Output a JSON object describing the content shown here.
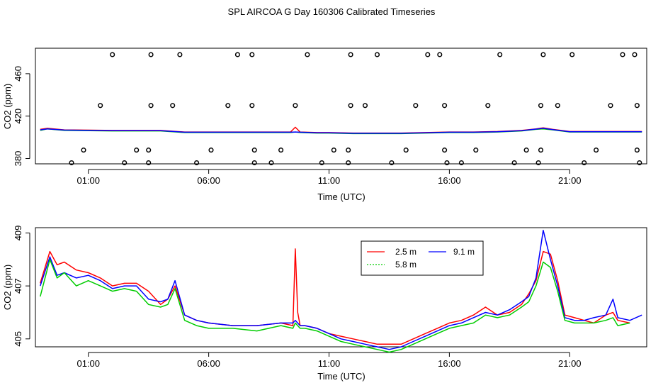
{
  "title": "SPL AIRCOA G  Day 160306  Calibrated Timeseries",
  "chart_data": [
    {
      "type": "scatter",
      "id": "top",
      "xlabel": "Time (UTC)",
      "ylabel": "CO2 (ppm)",
      "xlim": [
        -1.2,
        24.2
      ],
      "ylim": [
        375,
        484
      ],
      "xticks": [
        {
          "v": 1,
          "label": "01:00"
        },
        {
          "v": 6,
          "label": "06:00"
        },
        {
          "v": 11,
          "label": "11:00"
        },
        {
          "v": 16,
          "label": "16:00"
        },
        {
          "v": 21,
          "label": "21:00"
        }
      ],
      "yticks": [
        {
          "v": 380,
          "label": "380"
        },
        {
          "v": 420,
          "label": "420"
        },
        {
          "v": 460,
          "label": "460"
        }
      ],
      "levels": {
        "l1": 478,
        "l2": 430,
        "l3": 388,
        "l4": 376
      },
      "points": [
        [
          0.3,
          "l4"
        ],
        [
          0.8,
          "l3"
        ],
        [
          1.5,
          "l2"
        ],
        [
          2.0,
          "l1"
        ],
        [
          2.5,
          "l4"
        ],
        [
          3.0,
          "l3"
        ],
        [
          3.5,
          "l3"
        ],
        [
          3.5,
          "l4"
        ],
        [
          3.6,
          "l2"
        ],
        [
          3.6,
          "l1"
        ],
        [
          4.5,
          "l2"
        ],
        [
          4.8,
          "l1"
        ],
        [
          5.5,
          "l4"
        ],
        [
          6.1,
          "l3"
        ],
        [
          6.8,
          "l2"
        ],
        [
          7.2,
          "l1"
        ],
        [
          7.8,
          "l1"
        ],
        [
          7.8,
          "l2"
        ],
        [
          7.9,
          "l3"
        ],
        [
          7.9,
          "l4"
        ],
        [
          8.6,
          "l4"
        ],
        [
          9.0,
          "l3"
        ],
        [
          9.6,
          "l2"
        ],
        [
          10.1,
          "l1"
        ],
        [
          10.7,
          "l4"
        ],
        [
          11.2,
          "l3"
        ],
        [
          11.8,
          "l3"
        ],
        [
          11.8,
          "l4"
        ],
        [
          11.9,
          "l2"
        ],
        [
          11.9,
          "l1"
        ],
        [
          12.5,
          "l2"
        ],
        [
          13.0,
          "l1"
        ],
        [
          13.6,
          "l4"
        ],
        [
          14.2,
          "l3"
        ],
        [
          14.6,
          "l2"
        ],
        [
          15.1,
          "l1"
        ],
        [
          15.6,
          "l1"
        ],
        [
          15.8,
          "l2"
        ],
        [
          15.8,
          "l3"
        ],
        [
          15.9,
          "l4"
        ],
        [
          16.5,
          "l4"
        ],
        [
          17.1,
          "l3"
        ],
        [
          17.6,
          "l2"
        ],
        [
          18.1,
          "l1"
        ],
        [
          18.7,
          "l4"
        ],
        [
          19.2,
          "l3"
        ],
        [
          19.7,
          "l4"
        ],
        [
          19.8,
          "l3"
        ],
        [
          19.8,
          "l2"
        ],
        [
          19.9,
          "l1"
        ],
        [
          20.5,
          "l2"
        ],
        [
          21.1,
          "l1"
        ],
        [
          21.6,
          "l4"
        ],
        [
          22.1,
          "l3"
        ],
        [
          22.7,
          "l2"
        ],
        [
          23.2,
          "l1"
        ],
        [
          23.7,
          "l1"
        ],
        [
          23.8,
          "l2"
        ],
        [
          23.8,
          "l3"
        ],
        [
          23.9,
          "l4"
        ]
      ],
      "lines": [
        {
          "name": "2.5 m",
          "color": "#ff0000",
          "x": [
            -1.0,
            -0.7,
            0,
            2,
            4,
            5,
            8,
            9.4,
            9.6,
            9.8,
            10.5,
            11,
            12,
            13,
            14,
            15,
            16,
            17,
            18,
            19,
            19.6,
            19.9,
            20.3,
            21,
            22,
            23,
            24
          ],
          "y": [
            407.5,
            408.5,
            407,
            406.5,
            406.5,
            405,
            405,
            405,
            409.5,
            405,
            404.5,
            404.5,
            404,
            404,
            404,
            404.5,
            405,
            405,
            405.5,
            406.5,
            408,
            409,
            407.5,
            405.5,
            405.5,
            405.5,
            405.5
          ]
        },
        {
          "name": "5.8 m",
          "color": "#00cc00",
          "x": [
            -1.0,
            -0.7,
            0,
            2,
            4,
            5,
            8,
            9.4,
            9.6,
            9.8,
            10.5,
            11,
            12,
            13,
            14,
            15,
            16,
            17,
            18,
            19,
            19.6,
            19.9,
            20.3,
            21,
            22,
            23,
            24
          ],
          "y": [
            406.5,
            408,
            406.5,
            406,
            406,
            404.5,
            404.5,
            404.5,
            405,
            404.5,
            404,
            404,
            403.5,
            403.5,
            403.5,
            404,
            404.5,
            404.5,
            405,
            406,
            407.5,
            408,
            407,
            405,
            405,
            405,
            405
          ]
        },
        {
          "name": "9.1 m",
          "color": "#0000ff",
          "x": [
            -1.0,
            -0.7,
            0,
            2,
            4,
            5,
            8,
            9.4,
            9.6,
            9.8,
            10.5,
            11,
            12,
            13,
            14,
            15,
            16,
            17,
            18,
            19,
            19.6,
            19.9,
            20.3,
            21,
            22,
            23,
            24
          ],
          "y": [
            407,
            408,
            406.8,
            406.3,
            406.3,
            404.8,
            404.8,
            404.8,
            405,
            404.8,
            404.3,
            404.3,
            403.8,
            403.8,
            403.8,
            404.3,
            404.8,
            404.8,
            405.3,
            406.3,
            407.8,
            408.5,
            407.2,
            405.2,
            405.2,
            405.2,
            405.2
          ]
        }
      ]
    },
    {
      "type": "line",
      "id": "bottom",
      "xlabel": "Time (UTC)",
      "ylabel": "CO2 (ppm)",
      "xlim": [
        -1.2,
        24.2
      ],
      "ylim": [
        404.7,
        409.2
      ],
      "xticks": [
        {
          "v": 1,
          "label": "01:00"
        },
        {
          "v": 6,
          "label": "06:00"
        },
        {
          "v": 11,
          "label": "11:00"
        },
        {
          "v": 16,
          "label": "16:00"
        },
        {
          "v": 21,
          "label": "21:00"
        }
      ],
      "yticks": [
        {
          "v": 405,
          "label": "405"
        },
        {
          "v": 407,
          "label": "407"
        },
        {
          "v": 409,
          "label": "409"
        }
      ],
      "legend": {
        "placement": "top-center",
        "entries": [
          {
            "label": "2.5 m",
            "color": "#ff0000",
            "dash": false
          },
          {
            "label": "9.1 m",
            "color": "#0000ff",
            "dash": false
          },
          {
            "label": "5.8 m",
            "color": "#00cc00",
            "dash": true
          }
        ]
      },
      "series": [
        {
          "name": "2.5 m",
          "color": "#ff0000",
          "x": [
            -1.0,
            -0.6,
            -0.3,
            0,
            0.5,
            1,
            1.5,
            2,
            2.5,
            3,
            3.5,
            4,
            4.3,
            4.6,
            5,
            5.5,
            6,
            7,
            8,
            9,
            9.5,
            9.6,
            9.7,
            9.8,
            10,
            10.5,
            11,
            11.5,
            12,
            12.5,
            13,
            13.5,
            14,
            14.5,
            15,
            15.5,
            16,
            16.5,
            17,
            17.5,
            18,
            18.5,
            19,
            19.3,
            19.6,
            19.9,
            20.2,
            20.5,
            20.8,
            21.2,
            21.6,
            22,
            22.5,
            22.8,
            23,
            23.5
          ],
          "y": [
            407.1,
            408.3,
            407.8,
            407.9,
            407.6,
            407.5,
            407.3,
            407.0,
            407.1,
            407.1,
            406.8,
            406.3,
            406.5,
            407.0,
            405.9,
            405.7,
            405.6,
            405.5,
            405.5,
            405.6,
            405.5,
            408.4,
            406.0,
            405.5,
            405.5,
            405.4,
            405.2,
            405.1,
            405.0,
            404.9,
            404.8,
            404.8,
            404.8,
            405.0,
            405.2,
            405.4,
            405.6,
            405.7,
            405.9,
            406.2,
            405.9,
            406.0,
            406.3,
            406.7,
            407.2,
            408.3,
            408.2,
            407.2,
            405.9,
            405.8,
            405.7,
            405.6,
            405.9,
            406.0,
            405.7,
            405.6
          ]
        },
        {
          "name": "9.1 m",
          "color": "#0000ff",
          "x": [
            -1.0,
            -0.6,
            -0.3,
            0,
            0.5,
            1,
            1.5,
            2,
            2.5,
            3,
            3.5,
            4,
            4.3,
            4.6,
            5,
            5.5,
            6,
            7,
            8,
            9,
            9.5,
            9.6,
            9.7,
            9.8,
            10,
            10.5,
            11,
            11.5,
            12,
            12.5,
            13,
            13.5,
            14,
            14.5,
            15,
            15.5,
            16,
            16.5,
            17,
            17.5,
            18,
            18.5,
            19,
            19.3,
            19.6,
            19.9,
            20.2,
            20.5,
            20.8,
            21.2,
            21.6,
            22,
            22.5,
            22.8,
            23,
            23.5,
            24
          ],
          "y": [
            407.0,
            408.1,
            407.4,
            407.5,
            407.3,
            407.4,
            407.2,
            406.9,
            407.0,
            407.0,
            406.5,
            406.4,
            406.5,
            407.2,
            405.9,
            405.7,
            405.6,
            405.5,
            405.5,
            405.6,
            405.6,
            405.7,
            405.6,
            405.5,
            405.5,
            405.4,
            405.2,
            405.0,
            404.9,
            404.8,
            404.7,
            404.6,
            404.7,
            404.9,
            405.1,
            405.3,
            405.5,
            405.6,
            405.8,
            406.0,
            405.9,
            406.1,
            406.4,
            406.6,
            407.3,
            409.1,
            408.0,
            407.0,
            405.8,
            405.7,
            405.7,
            405.8,
            405.9,
            406.5,
            405.8,
            405.7,
            405.9
          ]
        },
        {
          "name": "5.8 m",
          "color": "#00cc00",
          "x": [
            -1.0,
            -0.6,
            -0.3,
            0,
            0.5,
            1,
            1.5,
            2,
            2.5,
            3,
            3.5,
            4,
            4.3,
            4.6,
            5,
            5.5,
            6,
            7,
            8,
            9,
            9.5,
            9.6,
            9.7,
            9.8,
            10,
            10.5,
            11,
            11.5,
            12,
            12.5,
            13,
            13.5,
            14,
            14.5,
            15,
            15.5,
            16,
            16.5,
            17,
            17.5,
            18,
            18.5,
            19,
            19.3,
            19.6,
            19.9,
            20.2,
            20.5,
            20.8,
            21.2,
            21.6,
            22,
            22.5,
            22.8,
            23,
            23.5
          ],
          "y": [
            406.6,
            408.0,
            407.3,
            407.5,
            407.0,
            407.2,
            407.0,
            406.8,
            406.9,
            406.8,
            406.3,
            406.2,
            406.3,
            406.9,
            405.7,
            405.5,
            405.4,
            405.4,
            405.3,
            405.5,
            405.4,
            405.6,
            405.5,
            405.4,
            405.4,
            405.3,
            405.1,
            404.9,
            404.8,
            404.7,
            404.6,
            404.5,
            404.6,
            404.8,
            405.0,
            405.2,
            405.4,
            405.5,
            405.6,
            405.9,
            405.8,
            405.9,
            406.2,
            406.4,
            407.0,
            407.9,
            407.7,
            406.8,
            405.7,
            405.6,
            405.6,
            405.6,
            405.7,
            405.8,
            405.5,
            405.6
          ]
        }
      ]
    }
  ]
}
